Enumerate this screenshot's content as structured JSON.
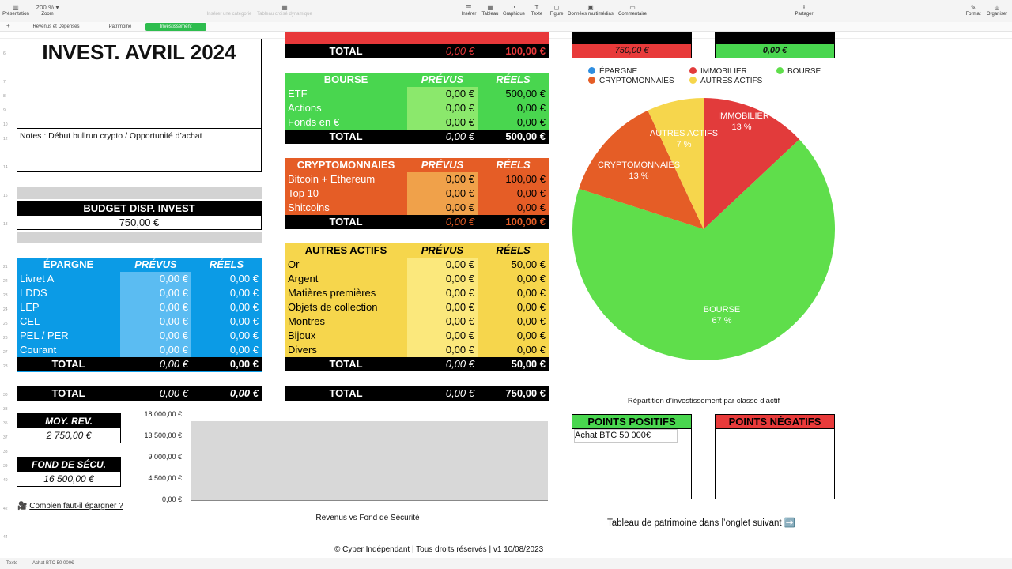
{
  "toolbar": {
    "left": [
      {
        "icon": "sidebar-icon",
        "glyph": "▥",
        "label": "Présentation"
      },
      {
        "icon": "zoom-icon",
        "glyph": "200 % ▾",
        "label": "Zoom"
      }
    ],
    "disabled": [
      {
        "icon": "add-category-icon",
        "glyph": "",
        "label": "Insérer une catégorie"
      },
      {
        "icon": "pivot-table-icon",
        "glyph": "▦",
        "label": "Tableau croisé dynamique"
      }
    ],
    "center": [
      {
        "icon": "insert-icon",
        "glyph": "☰",
        "label": "Insérer"
      },
      {
        "icon": "table-icon",
        "glyph": "▦",
        "label": "Tableau"
      },
      {
        "icon": "chart-icon",
        "glyph": "◔",
        "label": "Graphique"
      },
      {
        "icon": "text-icon",
        "glyph": "T",
        "label": "Texte"
      },
      {
        "icon": "shape-icon",
        "glyph": "◻",
        "label": "Figure"
      },
      {
        "icon": "media-icon",
        "glyph": "▣",
        "label": "Données multimédias"
      },
      {
        "icon": "comment-icon",
        "glyph": "▭",
        "label": "Commentaire"
      }
    ],
    "share": {
      "icon": "share-icon",
      "glyph": "⇪",
      "label": "Partager"
    },
    "right": [
      {
        "icon": "format-icon",
        "glyph": "✎",
        "label": "Format"
      },
      {
        "icon": "organize-icon",
        "glyph": "◎",
        "label": "Organiser"
      }
    ]
  },
  "sheet_tabs": [
    "Revenus et Dépenses",
    "Patrimoine",
    "Investissement"
  ],
  "active_tab": 2,
  "title": "INVEST. AVRIL 2024",
  "notes": "Notes : Début bullrun crypto / Opportunité d’achat",
  "budget": {
    "label": "BUDGET DISP. INVEST",
    "value": "750,00 €"
  },
  "epargne": {
    "header": [
      "ÉPARGNE",
      "PRÉVUS",
      "RÉELS"
    ],
    "rows": [
      [
        "Livret A",
        "0,00 €",
        "0,00 €"
      ],
      [
        "LDDS",
        "0,00 €",
        "0,00 €"
      ],
      [
        "LEP",
        "0,00 €",
        "0,00 €"
      ],
      [
        "CEL",
        "0,00 €",
        "0,00 €"
      ],
      [
        "PEL / PER",
        "0,00 €",
        "0,00 €"
      ],
      [
        "Courant",
        "0,00 €",
        "0,00 €"
      ]
    ],
    "total": [
      "TOTAL",
      "0,00 €",
      "0,00 €"
    ]
  },
  "top_table": {
    "total": [
      "TOTAL",
      "0,00 €",
      "100,00 €"
    ]
  },
  "bourse": {
    "header": [
      "BOURSE",
      "PRÉVUS",
      "RÉELS"
    ],
    "rows": [
      [
        "ETF",
        "0,00 €",
        "500,00 €"
      ],
      [
        "Actions",
        "0,00 €",
        "0,00 €"
      ],
      [
        "Fonds en €",
        "0,00 €",
        "0,00 €"
      ]
    ],
    "total": [
      "TOTAL",
      "0,00 €",
      "500,00 €"
    ]
  },
  "crypto": {
    "header": [
      "CRYPTOMONNAIES",
      "PRÉVUS",
      "RÉELS"
    ],
    "rows": [
      [
        "Bitcoin + Ethereum",
        "0,00 €",
        "100,00 €"
      ],
      [
        "Top 10",
        "0,00 €",
        "0,00 €"
      ],
      [
        "Shitcoins",
        "0,00 €",
        "0,00 €"
      ]
    ],
    "total": [
      "TOTAL",
      "0,00 €",
      "100,00 €"
    ]
  },
  "autres": {
    "header": [
      "AUTRES ACTIFS",
      "PRÉVUS",
      "RÉELS"
    ],
    "rows": [
      [
        "Or",
        "0,00 €",
        "50,00 €"
      ],
      [
        "Argent",
        "0,00 €",
        "0,00 €"
      ],
      [
        "Matières premières",
        "0,00 €",
        "0,00 €"
      ],
      [
        "Objets de collection",
        "0,00 €",
        "0,00 €"
      ],
      [
        "Montres",
        "0,00 €",
        "0,00 €"
      ],
      [
        "Bijoux",
        "0,00 €",
        "0,00 €"
      ],
      [
        "Divers",
        "0,00 €",
        "0,00 €"
      ]
    ],
    "total": [
      "TOTAL",
      "0,00 €",
      "50,00 €"
    ]
  },
  "grand_total_left": [
    "TOTAL",
    "0,00 €",
    "0,00 €"
  ],
  "grand_total_right": [
    "TOTAL",
    "0,00 €",
    "750,00 €"
  ],
  "summary_boxes": [
    {
      "value": "750,00 €",
      "color": "#e83a3a"
    },
    {
      "value": "0,00 €",
      "color": "#49d64f"
    }
  ],
  "moy_rev": {
    "label": "MOY. REV.",
    "value": "2 750,00 €"
  },
  "fond_secu": {
    "label": "FOND DE SÉCU.",
    "value": "16 500,00 €"
  },
  "help_link": {
    "icon": "video-camera-icon",
    "glyph": "🎥",
    "label": "Combien faut-il épargner ?"
  },
  "bar_chart": {
    "caption": "Revenus vs Fond de Sécurité",
    "y_ticks": [
      "18 000,00 €",
      "13 500,00 €",
      "9 000,00 €",
      "4 500,00 €",
      "0,00 €"
    ]
  },
  "chart_data": [
    {
      "type": "pie",
      "title": "Répartition d’investissement par classe d’actif",
      "legend_position": "top",
      "legend": [
        {
          "name": "ÉPARGNE",
          "color": "#2f8ee0"
        },
        {
          "name": "IMMOBILIER",
          "color": "#e23b3b"
        },
        {
          "name": "BOURSE",
          "color": "#5fde4b"
        },
        {
          "name": "CRYPTOMONNAIES",
          "color": "#e55d26"
        },
        {
          "name": "AUTRES ACTIFS",
          "color": "#f6d64c"
        }
      ],
      "slices": [
        {
          "name": "IMMOBILIER",
          "value": 13,
          "label": "13 %",
          "color": "#e23b3b"
        },
        {
          "name": "BOURSE",
          "value": 67,
          "label": "67 %",
          "color": "#5fde4b"
        },
        {
          "name": "CRYPTOMONNAIES",
          "value": 13,
          "label": "13 %",
          "color": "#e55d26"
        },
        {
          "name": "AUTRES ACTIFS",
          "value": 7,
          "label": "7 %",
          "color": "#f6d64c"
        }
      ]
    },
    {
      "type": "bar",
      "title": "Revenus vs Fond de Sécurité",
      "ylim": [
        0,
        18000
      ],
      "y_ticks": [
        "18 000,00 €",
        "13 500,00 €",
        "9 000,00 €",
        "4 500,00 €",
        "0,00 €"
      ],
      "grid": false
    }
  ],
  "points_positifs": {
    "header": "POINTS POSITIFS",
    "text": "Achat BTC 50 000€"
  },
  "points_negatifs": {
    "header": "POINTS NÉGATIFS",
    "text": ""
  },
  "patrimoine_note": "Tableau de patrimoine dans l’onglet suivant ➡️",
  "footer": "© Cyber Indépendant | Tous droits réservés | v1 10/08/2023",
  "status": {
    "mode": "Texte",
    "content": "Achat BTC 50 000€"
  }
}
